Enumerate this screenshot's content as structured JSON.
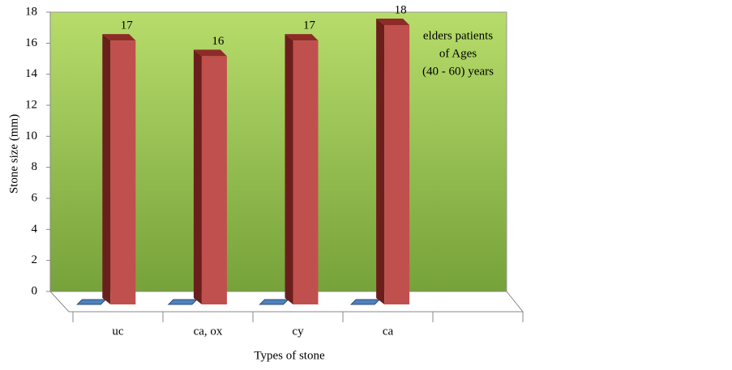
{
  "chart_data": {
    "type": "bar3d",
    "y_label": "Stone size (mm)",
    "x_label": "Types of stone",
    "annotation": [
      "elders patients",
      "of Ages",
      "(40 - 60) years"
    ],
    "categories": [
      "uc",
      "ca, ox",
      "cy",
      "ca",
      null
    ],
    "series": [
      {
        "color": "#4f81bd",
        "values": [
          0,
          0,
          0,
          0,
          null
        ]
      },
      {
        "color": "#c0504d",
        "values": [
          17,
          16,
          17,
          18,
          null
        ]
      }
    ],
    "ylim": [
      0,
      18
    ],
    "yticks": [
      0,
      2,
      4,
      6,
      8,
      10,
      12,
      14,
      16,
      18
    ]
  }
}
